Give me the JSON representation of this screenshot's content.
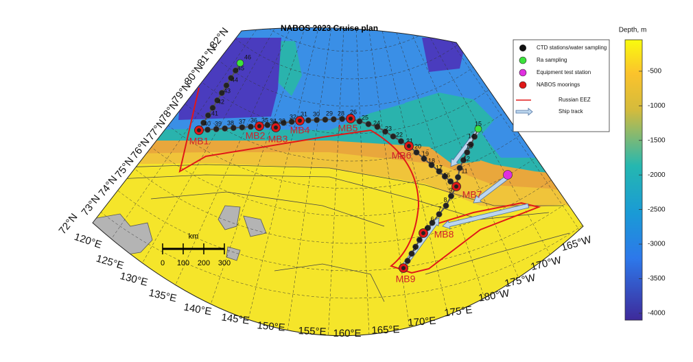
{
  "title": "NABOS 2023 Cruise plan",
  "legend": [
    "CTD stations/water sampling",
    "Ra sampling",
    "Equipment test station",
    "NABOS moorings",
    "Russian EEZ",
    "Ship track"
  ],
  "colorbar": {
    "label": "Depth, m",
    "lim": [
      -45,
      -4100
    ],
    "ticks": [
      -500,
      -1000,
      -1500,
      -2000,
      -2500,
      -3000,
      -3500,
      -4000
    ]
  },
  "latitude_labels": [
    "72°N",
    "73°N",
    "74°N",
    "75°N",
    "76°N",
    "77°N",
    "78°N",
    "79°N",
    "80°N",
    "81°N",
    "82°N"
  ],
  "longitude_labels": [
    "120°E",
    "125°E",
    "130°E",
    "135°E",
    "140°E",
    "145°E",
    "150°E",
    "155°E",
    "160°E",
    "165°E",
    "170°E",
    "175°E",
    "180°W",
    "175°W",
    "170°W",
    "165°W"
  ],
  "moorings": [
    "MB1",
    "MB2",
    "MB3",
    "MB4",
    "MB5",
    "MB6",
    "MB7",
    "MB8",
    "MB9"
  ],
  "stations": [
    "46",
    "45",
    "44",
    "43",
    "42",
    "41",
    "40",
    "39",
    "38",
    "37",
    "36",
    "35",
    "34",
    "33",
    "32",
    "31",
    "30",
    "29",
    "28",
    "26",
    "25",
    "24",
    "23",
    "22",
    "21",
    "20",
    "19",
    "18",
    "17",
    "16",
    "15",
    "14",
    "13",
    "12",
    "11",
    "9",
    "8",
    "7",
    "6",
    "5",
    "4",
    "3"
  ],
  "scale_bar": {
    "unit": "km",
    "range": [
      0,
      300
    ],
    "ticks": [
      0,
      100,
      200,
      300
    ]
  }
}
